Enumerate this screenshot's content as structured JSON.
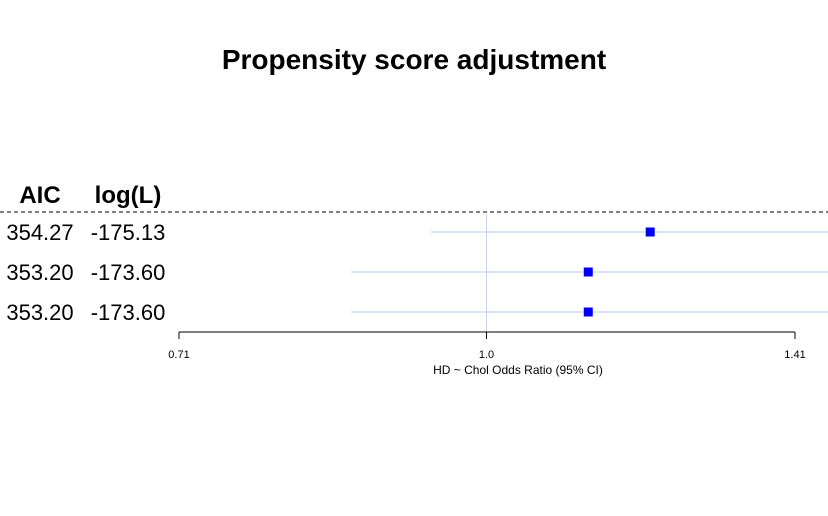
{
  "chart_data": {
    "type": "forest",
    "title": "Propensity score adjustment",
    "columns": [
      "AIC",
      "log(L)"
    ],
    "rows": [
      {
        "aic": "354.27",
        "logl": "-175.13",
        "or": 1.2,
        "lower": 0.94,
        "upper": 1.52
      },
      {
        "aic": "353.20",
        "logl": "-173.60",
        "or": 1.12,
        "lower": 0.86,
        "upper": 1.49
      },
      {
        "aic": "353.20",
        "logl": "-173.60",
        "or": 1.12,
        "lower": 0.86,
        "upper": 1.49
      }
    ],
    "xlabel": "HD ~ Chol Odds Ratio (95% CI)",
    "x_scale": "log",
    "xlim": [
      0.71,
      1.41
    ],
    "xticks": [
      {
        "value": 0.71,
        "label": "0.71"
      },
      {
        "value": 1.0,
        "label": "1.0"
      },
      {
        "value": 1.41,
        "label": "1.41"
      }
    ],
    "reference_line": 1.0,
    "colors": {
      "point": "#0000ee",
      "ci_line": "#b4cce8",
      "ref_line": "#c5d6ea",
      "header_rule": "#000000"
    }
  }
}
